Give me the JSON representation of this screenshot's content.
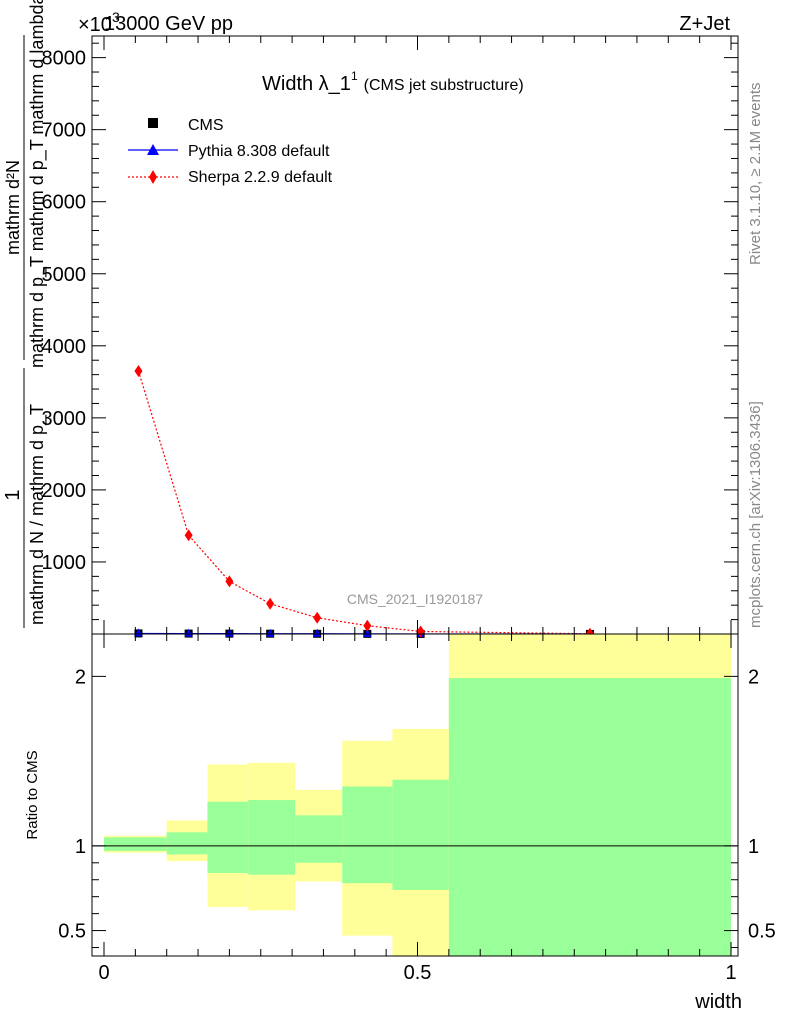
{
  "header": {
    "left": "13000 GeV pp",
    "right": "Z+Jet",
    "exponent": "×10",
    "exponent_power": "3"
  },
  "side_labels": {
    "rivet": "Rivet 3.1.10, ≥ 2.1M events",
    "mcplots": "mcplots.cern.ch [arXiv:1306.3436]"
  },
  "watermark": "CMS_2021_I1920187",
  "chart_data": [
    {
      "type": "line",
      "title_main": "Width λ_1",
      "title_sup": "1",
      "title_note": "(CMS jet substructure)",
      "ylabel_numerator": "mathrm d²N",
      "ylabel_denominator": "mathrm d p_T mathrm d p_T mathrm d lambda",
      "ylabel_fraction_1": "1",
      "ylabel_fraction_2": "mathrm d N / mathrm d p_T",
      "xlim": [
        0,
        1
      ],
      "ylim": [
        0,
        8300
      ],
      "ytick_values": [
        1000,
        2000,
        3000,
        4000,
        5000,
        6000,
        7000,
        8000
      ],
      "ytick_labels": [
        "1000",
        "2000",
        "3000",
        "4000",
        "5000",
        "6000",
        "7000",
        "8000"
      ],
      "legend_position": "top-left",
      "legend": [
        {
          "label": "CMS",
          "color": "#000000",
          "marker": "square"
        },
        {
          "label": "Pythia 8.308 default",
          "color": "#0000ff",
          "marker": "triangle"
        },
        {
          "label": "Sherpa 2.2.9 default",
          "color": "#ff0000",
          "marker": "diamond"
        }
      ],
      "series": [
        {
          "name": "CMS",
          "color": "#000000",
          "x": [
            0.055,
            0.135,
            0.2,
            0.265,
            0.34,
            0.42,
            0.505,
            0.775
          ],
          "y": [
            8,
            6,
            5,
            4,
            3,
            2,
            1,
            1
          ]
        },
        {
          "name": "Pythia 8.308 default",
          "color": "#0000ff",
          "x": [
            0.055,
            0.135,
            0.2,
            0.265,
            0.34,
            0.42,
            0.505,
            0.775
          ],
          "y": [
            8,
            6,
            5,
            4,
            3,
            2,
            1,
            1
          ]
        },
        {
          "name": "Sherpa 2.2.9 default",
          "color": "#ff0000",
          "x": [
            0.055,
            0.135,
            0.2,
            0.265,
            0.34,
            0.42,
            0.505,
            0.775
          ],
          "y": [
            3650,
            1370,
            730,
            420,
            225,
            115,
            35,
            3
          ]
        }
      ]
    },
    {
      "type": "area",
      "ylabel": "Ratio to CMS",
      "xlabel": "width",
      "xlim": [
        0,
        1
      ],
      "ylim": [
        0.35,
        2.25
      ],
      "xtick_values": [
        0,
        0.5,
        1
      ],
      "xtick_labels": [
        "0",
        "0.5",
        "1"
      ],
      "ytick_values": [
        0.5,
        1,
        2
      ],
      "ytick_labels": [
        "0.5",
        "1",
        "2"
      ],
      "reference_line": 1,
      "bands": [
        {
          "x0": 0.0,
          "x1": 0.1,
          "green": [
            0.97,
            1.05
          ],
          "yellow": [
            0.96,
            1.06
          ]
        },
        {
          "x0": 0.1,
          "x1": 0.165,
          "green": [
            0.95,
            1.08
          ],
          "yellow": [
            0.91,
            1.15
          ]
        },
        {
          "x0": 0.165,
          "x1": 0.23,
          "green": [
            0.84,
            1.26
          ],
          "yellow": [
            0.64,
            1.48
          ]
        },
        {
          "x0": 0.23,
          "x1": 0.305,
          "green": [
            0.83,
            1.27
          ],
          "yellow": [
            0.62,
            1.49
          ]
        },
        {
          "x0": 0.305,
          "x1": 0.38,
          "green": [
            0.9,
            1.18
          ],
          "yellow": [
            0.79,
            1.33
          ]
        },
        {
          "x0": 0.38,
          "x1": 0.46,
          "green": [
            0.78,
            1.35
          ],
          "yellow": [
            0.47,
            1.62
          ]
        },
        {
          "x0": 0.46,
          "x1": 0.55,
          "green": [
            0.74,
            1.39
          ],
          "yellow": [
            0.35,
            1.69
          ]
        },
        {
          "x0": 0.55,
          "x1": 1.0,
          "green": [
            0.35,
            1.99
          ],
          "yellow": [
            0.35,
            2.25
          ]
        }
      ],
      "band_colors": {
        "green": "#99ff99",
        "yellow": "#ffff99"
      }
    }
  ]
}
